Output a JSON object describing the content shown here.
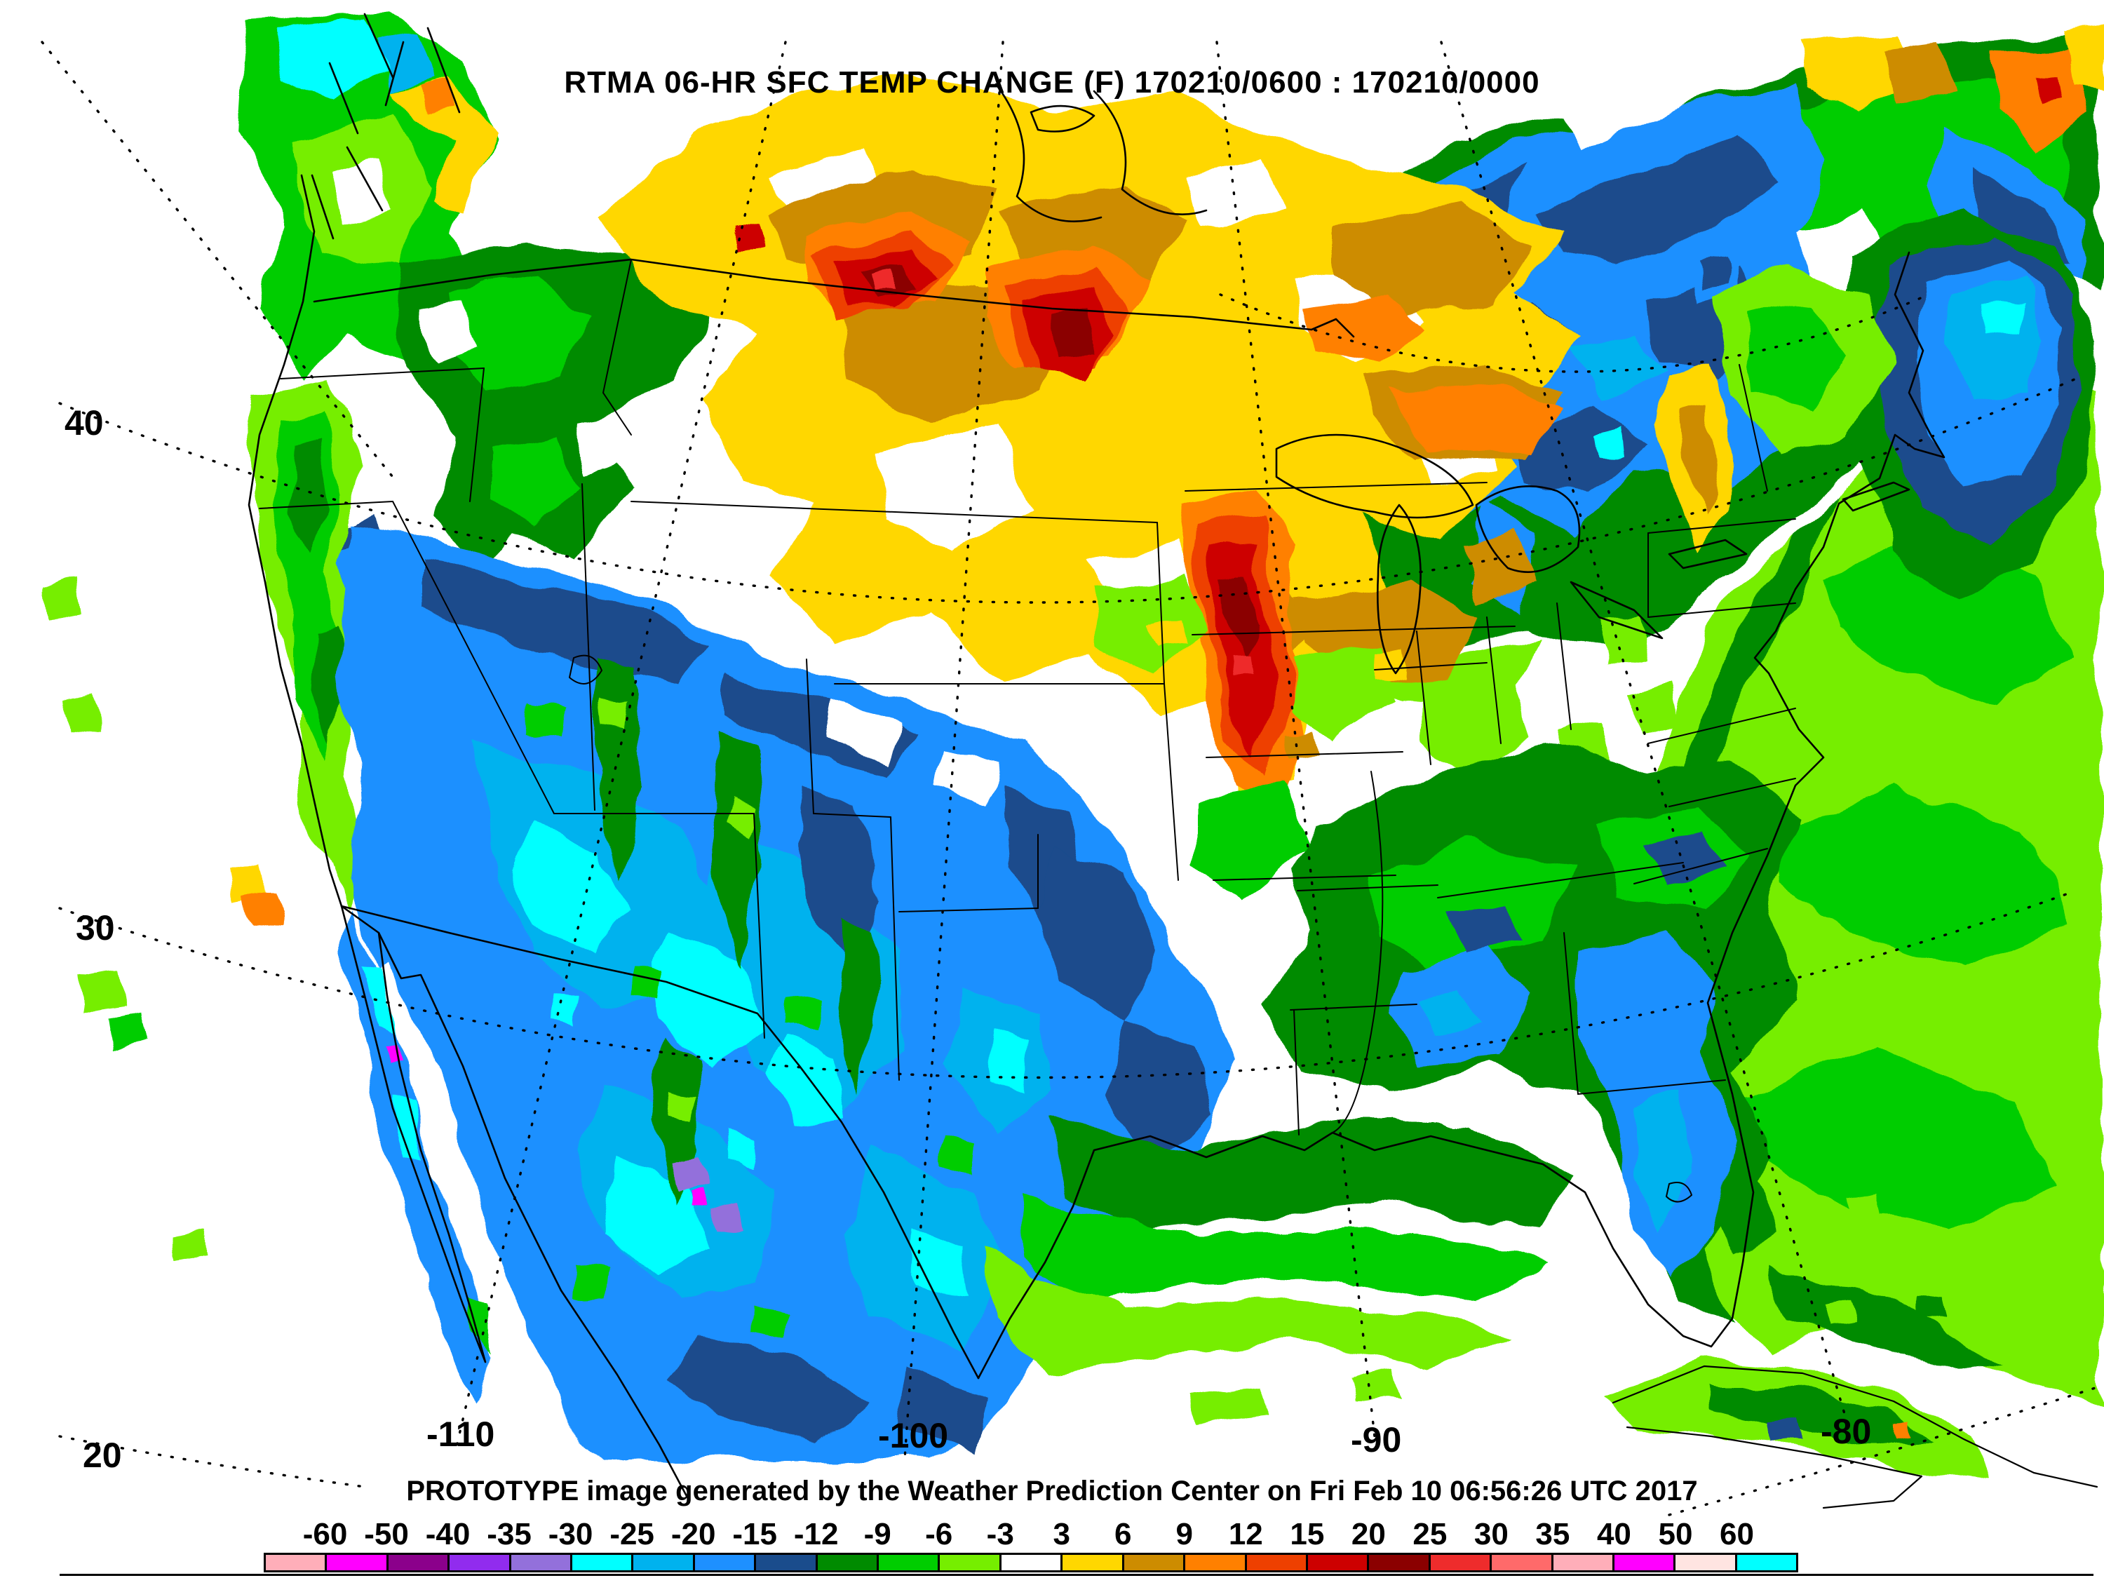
{
  "header": {
    "title": "RTMA 06-HR SFC TEMP CHANGE (F) 170210/0600 : 170210/0000"
  },
  "footer": {
    "caption": "PROTOTYPE image generated by the Weather Prediction Center on Fri Feb 10 06:56:26 UTC 2017"
  },
  "graticule": {
    "lat": [
      "40",
      "30",
      "20"
    ],
    "lon": [
      "-110",
      "-100",
      "-90",
      "-80"
    ]
  },
  "colorbar": {
    "labels": [
      "-60",
      "-50",
      "-40",
      "-35",
      "-30",
      "-25",
      "-20",
      "-15",
      "-12",
      "-9",
      "-6",
      "-3",
      "3",
      "6",
      "9",
      "12",
      "15",
      "20",
      "25",
      "30",
      "35",
      "40",
      "50",
      "60"
    ],
    "cells": [
      "#FFAEB9",
      "#FF00FF",
      "#8B008B",
      "#912CEE",
      "#9370DB",
      "#00FFFF",
      "#00B2EE",
      "#1E90FF",
      "#1A4C8C",
      "#008B00",
      "#00CD00",
      "#76EE00",
      "#FFFFFF",
      "#FFD700",
      "#CD8C00",
      "#FF8000",
      "#EE4000",
      "#CD0000",
      "#8B0000",
      "#EE2C2C",
      "#FF6A6A",
      "#FFAEB9",
      "#FF00FF",
      "#FFE4E1",
      "#00FFFF"
    ]
  }
}
